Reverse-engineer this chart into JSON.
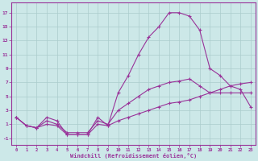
{
  "xlabel": "Windchill (Refroidissement éolien,°C)",
  "xlim_min": -0.5,
  "xlim_max": 23.5,
  "ylim_min": -2.0,
  "ylim_max": 18.5,
  "xticks": [
    0,
    1,
    2,
    3,
    4,
    5,
    6,
    7,
    8,
    9,
    10,
    11,
    12,
    13,
    14,
    15,
    16,
    17,
    18,
    19,
    20,
    21,
    22,
    23
  ],
  "yticks": [
    -1,
    1,
    3,
    5,
    7,
    9,
    11,
    13,
    15,
    17
  ],
  "background_color": "#cce8e8",
  "grid_color": "#aacccc",
  "line_color": "#993399",
  "line1_x": [
    0,
    1,
    2,
    3,
    4,
    5,
    6,
    7,
    8,
    9,
    10,
    11,
    12,
    13,
    14,
    15,
    16,
    17,
    18,
    19,
    20,
    21,
    22,
    23
  ],
  "line1_y": [
    2.0,
    0.8,
    0.5,
    2.0,
    1.5,
    -0.5,
    -0.5,
    -0.5,
    2.0,
    0.8,
    5.5,
    8.0,
    11.0,
    13.5,
    15.0,
    17.0,
    17.0,
    16.5,
    14.5,
    9.0,
    8.0,
    6.5,
    6.0,
    3.5
  ],
  "line2_x": [
    0,
    1,
    2,
    3,
    4,
    5,
    6,
    7,
    8,
    9,
    10,
    11,
    12,
    13,
    14,
    15,
    16,
    17,
    18,
    19,
    20,
    21,
    22,
    23
  ],
  "line2_y": [
    2.0,
    0.8,
    0.5,
    1.5,
    1.0,
    -0.2,
    -0.2,
    -0.2,
    1.5,
    1.0,
    3.0,
    4.0,
    5.0,
    6.0,
    6.5,
    7.0,
    7.2,
    7.5,
    6.5,
    5.5,
    5.5,
    5.5,
    5.5,
    5.5
  ],
  "line3_x": [
    0,
    1,
    2,
    3,
    4,
    5,
    6,
    7,
    8,
    9,
    10,
    11,
    12,
    13,
    14,
    15,
    16,
    17,
    18,
    19,
    20,
    21,
    22,
    23
  ],
  "line3_y": [
    2.0,
    0.8,
    0.5,
    1.0,
    0.8,
    -0.5,
    -0.5,
    -0.5,
    1.0,
    0.8,
    1.5,
    2.0,
    2.5,
    3.0,
    3.5,
    4.0,
    4.2,
    4.5,
    5.0,
    5.5,
    6.0,
    6.5,
    6.8,
    7.0
  ]
}
